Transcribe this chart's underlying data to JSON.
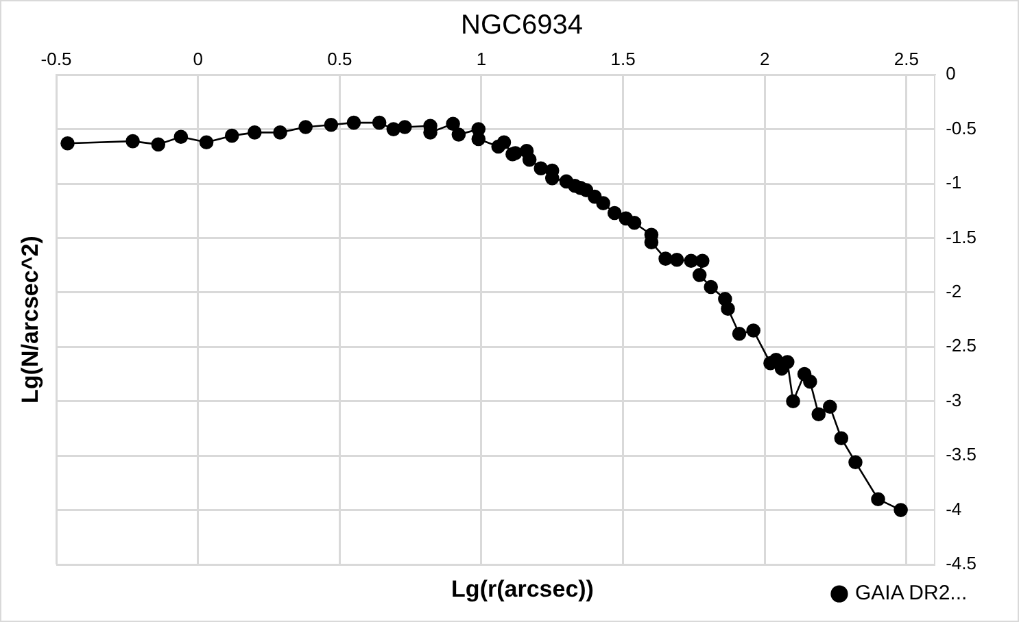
{
  "chart_data": {
    "type": "line",
    "title": "NGC6934",
    "xlabel": "Lg(r(arcsec))",
    "ylabel": "Lg(N/arcsec^2)",
    "xlim": [
      -0.5,
      2.6
    ],
    "xticks": [
      -0.5,
      0,
      0.5,
      1,
      1.5,
      2,
      2.5
    ],
    "ylim": [
      -4.5,
      0
    ],
    "yticks": [
      -4.5,
      -4,
      -3.5,
      -3,
      -2.5,
      -2,
      -1.5,
      -1,
      -0.5,
      0
    ],
    "grid": true,
    "legend": "bottom right",
    "marker": "circle",
    "line_style": "solid",
    "series": [
      {
        "name": "GAIA DR2...",
        "color": "#000000",
        "x": [
          -0.46,
          -0.23,
          -0.14,
          -0.06,
          0.03,
          0.12,
          0.2,
          0.29,
          0.38,
          0.47,
          0.55,
          0.64,
          0.69,
          0.73,
          0.82,
          0.82,
          0.9,
          0.92,
          0.99,
          0.99,
          1.06,
          1.08,
          1.11,
          1.12,
          1.16,
          1.17,
          1.21,
          1.25,
          1.25,
          1.3,
          1.33,
          1.35,
          1.37,
          1.4,
          1.43,
          1.47,
          1.51,
          1.54,
          1.6,
          1.6,
          1.65,
          1.69,
          1.74,
          1.78,
          1.77,
          1.81,
          1.86,
          1.87,
          1.91,
          1.96,
          2.02,
          2.04,
          2.06,
          2.08,
          2.1,
          2.14,
          2.16,
          2.19,
          2.23,
          2.27,
          2.32,
          2.4,
          2.48
        ],
        "values": [
          -0.63,
          -0.61,
          -0.64,
          -0.57,
          -0.62,
          -0.56,
          -0.53,
          -0.53,
          -0.48,
          -0.46,
          -0.44,
          -0.44,
          -0.5,
          -0.48,
          -0.47,
          -0.53,
          -0.45,
          -0.55,
          -0.5,
          -0.59,
          -0.66,
          -0.62,
          -0.73,
          -0.72,
          -0.7,
          -0.78,
          -0.86,
          -0.88,
          -0.95,
          -0.98,
          -1.02,
          -1.04,
          -1.06,
          -1.12,
          -1.18,
          -1.27,
          -1.32,
          -1.36,
          -1.47,
          -1.54,
          -1.69,
          -1.7,
          -1.71,
          -1.71,
          -1.84,
          -1.95,
          -2.06,
          -2.15,
          -2.38,
          -2.35,
          -2.65,
          -2.62,
          -2.7,
          -2.64,
          -3.0,
          -2.75,
          -2.82,
          -3.12,
          -3.05,
          -3.34,
          -3.56,
          -3.9,
          -4.0
        ]
      }
    ]
  }
}
